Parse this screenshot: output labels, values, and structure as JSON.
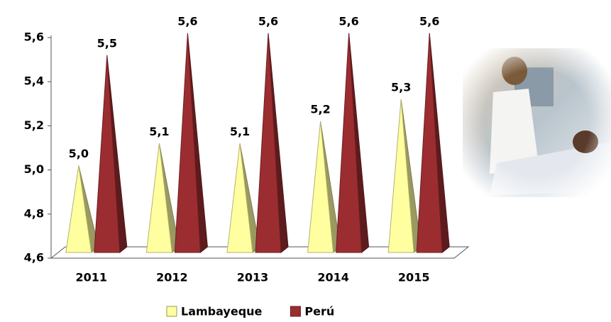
{
  "chart_data": {
    "type": "pyramid-bar",
    "categories": [
      "2011",
      "2012",
      "2013",
      "2014",
      "2015"
    ],
    "series": [
      {
        "name": "Lambayeque",
        "color": "#ffffa0",
        "values": [
          5.02,
          5.12,
          5.12,
          5.22,
          5.32
        ],
        "value_labels": [
          "5,0",
          "5,1",
          "5,1",
          "5,2",
          "5,3"
        ]
      },
      {
        "name": "Perú",
        "color": "#9b2d30",
        "values": [
          5.52,
          5.62,
          5.62,
          5.62,
          5.62
        ],
        "value_labels": [
          "5,5",
          "5,6",
          "5,6",
          "5,6",
          "5,6"
        ]
      }
    ],
    "ylim": [
      4.6,
      5.6
    ],
    "yticks": [
      {
        "value": 4.6,
        "label": "4,6"
      },
      {
        "value": 4.8,
        "label": "4,8"
      },
      {
        "value": 5.0,
        "label": "5,0"
      },
      {
        "value": 5.2,
        "label": "5,2"
      },
      {
        "value": 5.4,
        "label": "5,4"
      },
      {
        "value": 5.6,
        "label": "5,6"
      }
    ],
    "legend": "bottom"
  }
}
